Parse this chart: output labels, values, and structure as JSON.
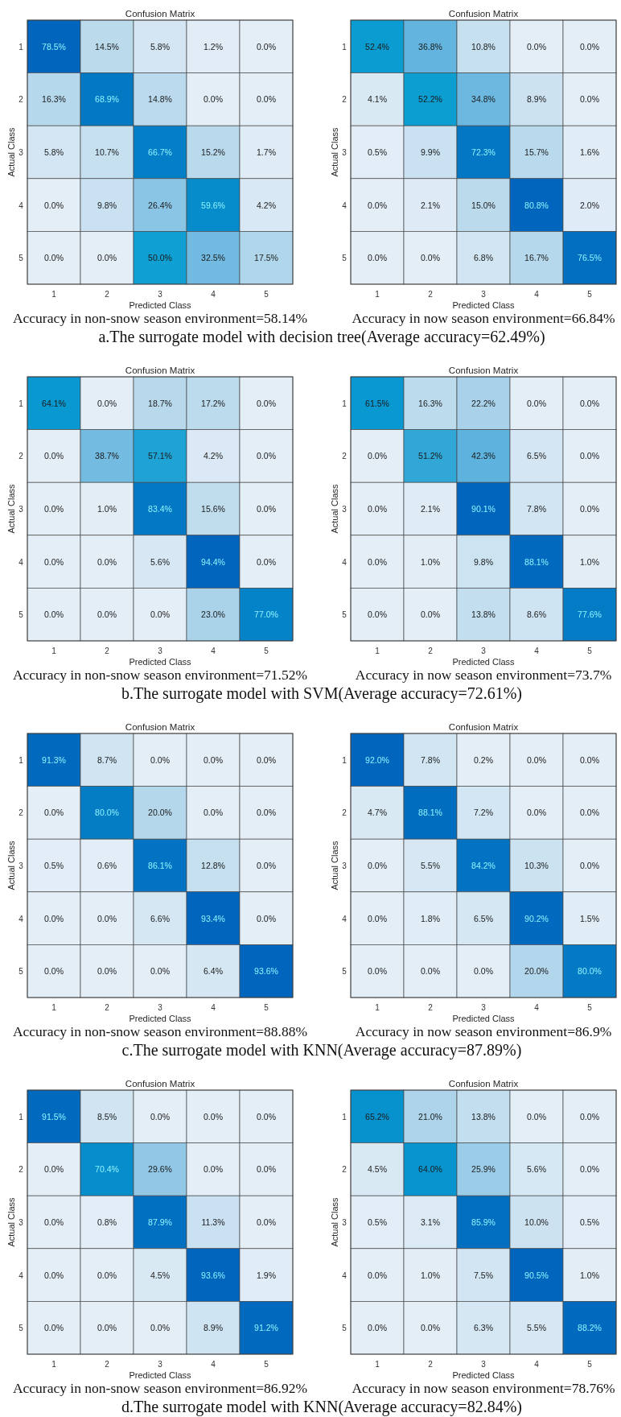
{
  "chart_data": [
    {
      "type": "heatmap",
      "title": "Confusion Matrix",
      "xlabel": "Predicted Class",
      "ylabel": "Actual Class",
      "categories": [
        "1",
        "2",
        "3",
        "4",
        "5"
      ],
      "y_categories": [
        "1",
        "2",
        "3",
        "4",
        "5"
      ],
      "cells": [
        [
          78.5,
          14.5,
          5.8,
          1.2,
          0.0
        ],
        [
          16.3,
          68.9,
          14.8,
          0.0,
          0.0
        ],
        [
          5.8,
          10.7,
          66.7,
          15.2,
          1.7
        ],
        [
          0.0,
          9.8,
          26.4,
          59.6,
          4.2
        ],
        [
          0.0,
          0.0,
          50.0,
          32.5,
          17.5
        ]
      ],
      "cell_labels": [
        [
          "78.5%",
          "14.5%",
          "5.8%",
          "1.2%",
          "0.0%"
        ],
        [
          "16.3%",
          "68.9%",
          "14.8%",
          "0.0%",
          "0.0%"
        ],
        [
          "5.8%",
          "10.7%",
          "66.7%",
          "15.2%",
          "1.7%"
        ],
        [
          "0.0%",
          "9.8%",
          "26.4%",
          "59.6%",
          "4.2%"
        ],
        [
          "0.0%",
          "0.0%",
          "50.0%",
          "32.5%",
          "17.5%"
        ]
      ],
      "annotations": [
        "Accuracy in non-snow season environment=58.14%",
        "a.The surrogate model with decision tree(Average accuracy=62.49%)"
      ]
    },
    {
      "type": "heatmap",
      "title": "Confusion Matrix",
      "xlabel": "Predicted Class",
      "ylabel": "Actual Class",
      "categories": [
        "1",
        "2",
        "3",
        "4",
        "5"
      ],
      "y_categories": [
        "1",
        "2",
        "3",
        "4",
        "5"
      ],
      "cells": [
        [
          52.4,
          36.8,
          10.8,
          0.0,
          0.0
        ],
        [
          4.1,
          52.2,
          34.8,
          8.9,
          0.0
        ],
        [
          0.5,
          9.9,
          72.3,
          15.7,
          1.6
        ],
        [
          0.0,
          2.1,
          15.0,
          80.8,
          2.0
        ],
        [
          0.0,
          0.0,
          6.8,
          16.7,
          76.5
        ]
      ],
      "cell_labels": [
        [
          "52.4%",
          "36.8%",
          "10.8%",
          "0.0%",
          "0.0%"
        ],
        [
          "4.1%",
          "52.2%",
          "34.8%",
          "8.9%",
          "0.0%"
        ],
        [
          "0.5%",
          "9.9%",
          "72.3%",
          "15.7%",
          "1.6%"
        ],
        [
          "0.0%",
          "2.1%",
          "15.0%",
          "80.8%",
          "2.0%"
        ],
        [
          "0.0%",
          "0.0%",
          "6.8%",
          "16.7%",
          "76.5%"
        ]
      ],
      "annotations": [
        "Accuracy in now season environment=66.84%"
      ]
    },
    {
      "type": "heatmap",
      "title": "Confusion Matrix",
      "xlabel": "Predicted Class",
      "ylabel": "Actual Class",
      "categories": [
        "1",
        "2",
        "3",
        "4",
        "5"
      ],
      "y_categories": [
        "1",
        "2",
        "3",
        "4",
        "5"
      ],
      "cells": [
        [
          64.1,
          0.0,
          18.7,
          17.2,
          0.0
        ],
        [
          0.0,
          38.7,
          57.1,
          4.2,
          0.0
        ],
        [
          0.0,
          1.0,
          83.4,
          15.6,
          0.0
        ],
        [
          0.0,
          0.0,
          5.6,
          94.4,
          0.0
        ],
        [
          0.0,
          0.0,
          0.0,
          23.0,
          77.0
        ]
      ],
      "cell_labels": [
        [
          "64.1%",
          "0.0%",
          "18.7%",
          "17.2%",
          "0.0%"
        ],
        [
          "0.0%",
          "38.7%",
          "57.1%",
          "4.2%",
          "0.0%"
        ],
        [
          "0.0%",
          "1.0%",
          "83.4%",
          "15.6%",
          "0.0%"
        ],
        [
          "0.0%",
          "0.0%",
          "5.6%",
          "94.4%",
          "0.0%"
        ],
        [
          "0.0%",
          "0.0%",
          "0.0%",
          "23.0%",
          "77.0%"
        ]
      ],
      "annotations": [
        "Accuracy in non-snow season environment=71.52%",
        "b.The surrogate model with SVM(Average accuracy=72.61%)"
      ]
    },
    {
      "type": "heatmap",
      "title": "Confusion Matrix",
      "xlabel": "Predicted Class",
      "ylabel": "Actual Class",
      "categories": [
        "1",
        "2",
        "3",
        "4",
        "5"
      ],
      "y_categories": [
        "1",
        "2",
        "3",
        "4",
        "5"
      ],
      "cells": [
        [
          61.5,
          16.3,
          22.2,
          0.0,
          0.0
        ],
        [
          0.0,
          51.2,
          42.3,
          6.5,
          0.0
        ],
        [
          0.0,
          2.1,
          90.1,
          7.8,
          0.0
        ],
        [
          0.0,
          1.0,
          9.8,
          88.1,
          1.0
        ],
        [
          0.0,
          0.0,
          13.8,
          8.6,
          77.6
        ]
      ],
      "cell_labels": [
        [
          "61.5%",
          "16.3%",
          "22.2%",
          "0.0%",
          "0.0%"
        ],
        [
          "0.0%",
          "51.2%",
          "42.3%",
          "6.5%",
          "0.0%"
        ],
        [
          "0.0%",
          "2.1%",
          "90.1%",
          "7.8%",
          "0.0%"
        ],
        [
          "0.0%",
          "1.0%",
          "9.8%",
          "88.1%",
          "1.0%"
        ],
        [
          "0.0%",
          "0.0%",
          "13.8%",
          "8.6%",
          "77.6%"
        ]
      ],
      "annotations": [
        "Accuracy in now season environment=73.7%"
      ]
    },
    {
      "type": "heatmap",
      "title": "Confusion Matrix",
      "xlabel": "Predicted Class",
      "ylabel": "Actual Class",
      "categories": [
        "1",
        "2",
        "3",
        "4",
        "5"
      ],
      "y_categories": [
        "1",
        "2",
        "3",
        "4",
        "5"
      ],
      "cells": [
        [
          91.3,
          8.7,
          0.0,
          0.0,
          0.0
        ],
        [
          0.0,
          80.0,
          20.0,
          0.0,
          0.0
        ],
        [
          0.5,
          0.6,
          86.1,
          12.8,
          0.0
        ],
        [
          0.0,
          0.0,
          6.6,
          93.4,
          0.0
        ],
        [
          0.0,
          0.0,
          0.0,
          6.4,
          93.6
        ]
      ],
      "cell_labels": [
        [
          "91.3%",
          "8.7%",
          "0.0%",
          "0.0%",
          "0.0%"
        ],
        [
          "0.0%",
          "80.0%",
          "20.0%",
          "0.0%",
          "0.0%"
        ],
        [
          "0.5%",
          "0.6%",
          "86.1%",
          "12.8%",
          "0.0%"
        ],
        [
          "0.0%",
          "0.0%",
          "6.6%",
          "93.4%",
          "0.0%"
        ],
        [
          "0.0%",
          "0.0%",
          "0.0%",
          "6.4%",
          "93.6%"
        ]
      ],
      "annotations": [
        "Accuracy in non-snow season environment=88.88%",
        "c.The surrogate model with KNN(Average accuracy=87.89%)"
      ]
    },
    {
      "type": "heatmap",
      "title": "Confusion Matrix",
      "xlabel": "Predicted Class",
      "ylabel": "Actual Class",
      "categories": [
        "1",
        "2",
        "3",
        "4",
        "5"
      ],
      "y_categories": [
        "1",
        "2",
        "3",
        "4",
        "5"
      ],
      "cells": [
        [
          92.0,
          7.8,
          0.2,
          0.0,
          0.0
        ],
        [
          4.7,
          88.1,
          7.2,
          0.0,
          0.0
        ],
        [
          0.0,
          5.5,
          84.2,
          10.3,
          0.0
        ],
        [
          0.0,
          1.8,
          6.5,
          90.2,
          1.5
        ],
        [
          0.0,
          0.0,
          0.0,
          20.0,
          80.0
        ]
      ],
      "cell_labels": [
        [
          "92.0%",
          "7.8%",
          "0.2%",
          "0.0%",
          "0.0%"
        ],
        [
          "4.7%",
          "88.1%",
          "7.2%",
          "0.0%",
          "0.0%"
        ],
        [
          "0.0%",
          "5.5%",
          "84.2%",
          "10.3%",
          "0.0%"
        ],
        [
          "0.0%",
          "1.8%",
          "6.5%",
          "90.2%",
          "1.5%"
        ],
        [
          "0.0%",
          "0.0%",
          "0.0%",
          "20.0%",
          "80.0%"
        ]
      ],
      "annotations": [
        "Accuracy in now season environment=86.9%"
      ]
    },
    {
      "type": "heatmap",
      "title": "Confusion Matrix",
      "xlabel": "Predicted Class",
      "ylabel": "Actual Class",
      "categories": [
        "1",
        "2",
        "3",
        "4",
        "5"
      ],
      "y_categories": [
        "1",
        "2",
        "3",
        "4",
        "5"
      ],
      "cells": [
        [
          91.5,
          8.5,
          0.0,
          0.0,
          0.0
        ],
        [
          0.0,
          70.4,
          29.6,
          0.0,
          0.0
        ],
        [
          0.0,
          0.8,
          87.9,
          11.3,
          0.0
        ],
        [
          0.0,
          0.0,
          4.5,
          93.6,
          1.9
        ],
        [
          0.0,
          0.0,
          0.0,
          8.9,
          91.2
        ]
      ],
      "cell_labels": [
        [
          "91.5%",
          "8.5%",
          "0.0%",
          "0.0%",
          "0.0%"
        ],
        [
          "0.0%",
          "70.4%",
          "29.6%",
          "0.0%",
          "0.0%"
        ],
        [
          "0.0%",
          "0.8%",
          "87.9%",
          "11.3%",
          "0.0%"
        ],
        [
          "0.0%",
          "0.0%",
          "4.5%",
          "93.6%",
          "1.9%"
        ],
        [
          "0.0%",
          "0.0%",
          "0.0%",
          "8.9%",
          "91.2%"
        ]
      ],
      "annotations": [
        "Accuracy in non-snow season environment=86.92%",
        "d.The surrogate model with KNN(Average accuracy=82.84%)"
      ]
    },
    {
      "type": "heatmap",
      "title": "Confusion Matrix",
      "xlabel": "Predicted Class",
      "ylabel": "Actual Class",
      "categories": [
        "1",
        "2",
        "3",
        "4",
        "5"
      ],
      "y_categories": [
        "1",
        "2",
        "3",
        "4",
        "5"
      ],
      "cells": [
        [
          65.2,
          21.0,
          13.8,
          0.0,
          0.0
        ],
        [
          4.5,
          64.0,
          25.9,
          5.6,
          0.0
        ],
        [
          0.5,
          3.1,
          85.9,
          10.0,
          0.5
        ],
        [
          0.0,
          1.0,
          7.5,
          90.5,
          1.0
        ],
        [
          0.0,
          0.0,
          6.3,
          5.5,
          88.2
        ]
      ],
      "cell_labels": [
        [
          "65.2%",
          "21.0%",
          "13.8%",
          "0.0%",
          "0.0%"
        ],
        [
          "4.5%",
          "64.0%",
          "25.9%",
          "5.6%",
          "0.0%"
        ],
        [
          "0.5%",
          "3.1%",
          "85.9%",
          "10.0%",
          "0.5%"
        ],
        [
          "0.0%",
          "1.0%",
          "7.5%",
          "90.5%",
          "1.0%"
        ],
        [
          "0.0%",
          "0.0%",
          "6.3%",
          "5.5%",
          "88.2%"
        ]
      ],
      "annotations": [
        "Accuracy in now season environment=78.76%"
      ]
    }
  ]
}
